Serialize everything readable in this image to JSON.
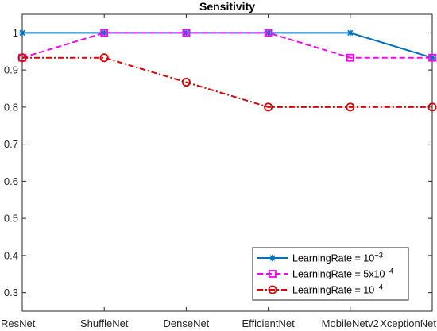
{
  "chart_data": {
    "type": "line",
    "title": "Sensitivity",
    "xlabel": "",
    "ylabel": "",
    "categories": [
      "ResNet",
      "ShuffleNet",
      "DenseNet",
      "EfficientNet",
      "MobileNetv2",
      "XceptionNet"
    ],
    "ylim": [
      0.25,
      1.05
    ],
    "yticks": [
      "0.3",
      "0.4",
      "0.5",
      "0.6",
      "0.7",
      "0.8",
      "0.9",
      "1"
    ],
    "grid": false,
    "legend_position": "bottom-right",
    "series": [
      {
        "name_base": "LearningRate = 10",
        "name_exp": "−3",
        "values": [
          1.0,
          1.0,
          1.0,
          1.0,
          1.0,
          0.933
        ],
        "color": "#0072BD",
        "dash": "solid",
        "marker": "asterisk"
      },
      {
        "name_base": "LearningRate = 5x10",
        "name_exp": "−4",
        "values": [
          0.933,
          1.0,
          1.0,
          1.0,
          0.933,
          0.933
        ],
        "color": "#FF00FF",
        "dash": "dashed",
        "marker": "square"
      },
      {
        "name_base": "LearningRate = 10",
        "name_exp": "−4",
        "values": [
          0.933,
          0.933,
          0.867,
          0.8,
          0.8,
          0.8
        ],
        "color": "#E00000",
        "dash": "dashdot",
        "marker": "circle"
      }
    ]
  }
}
